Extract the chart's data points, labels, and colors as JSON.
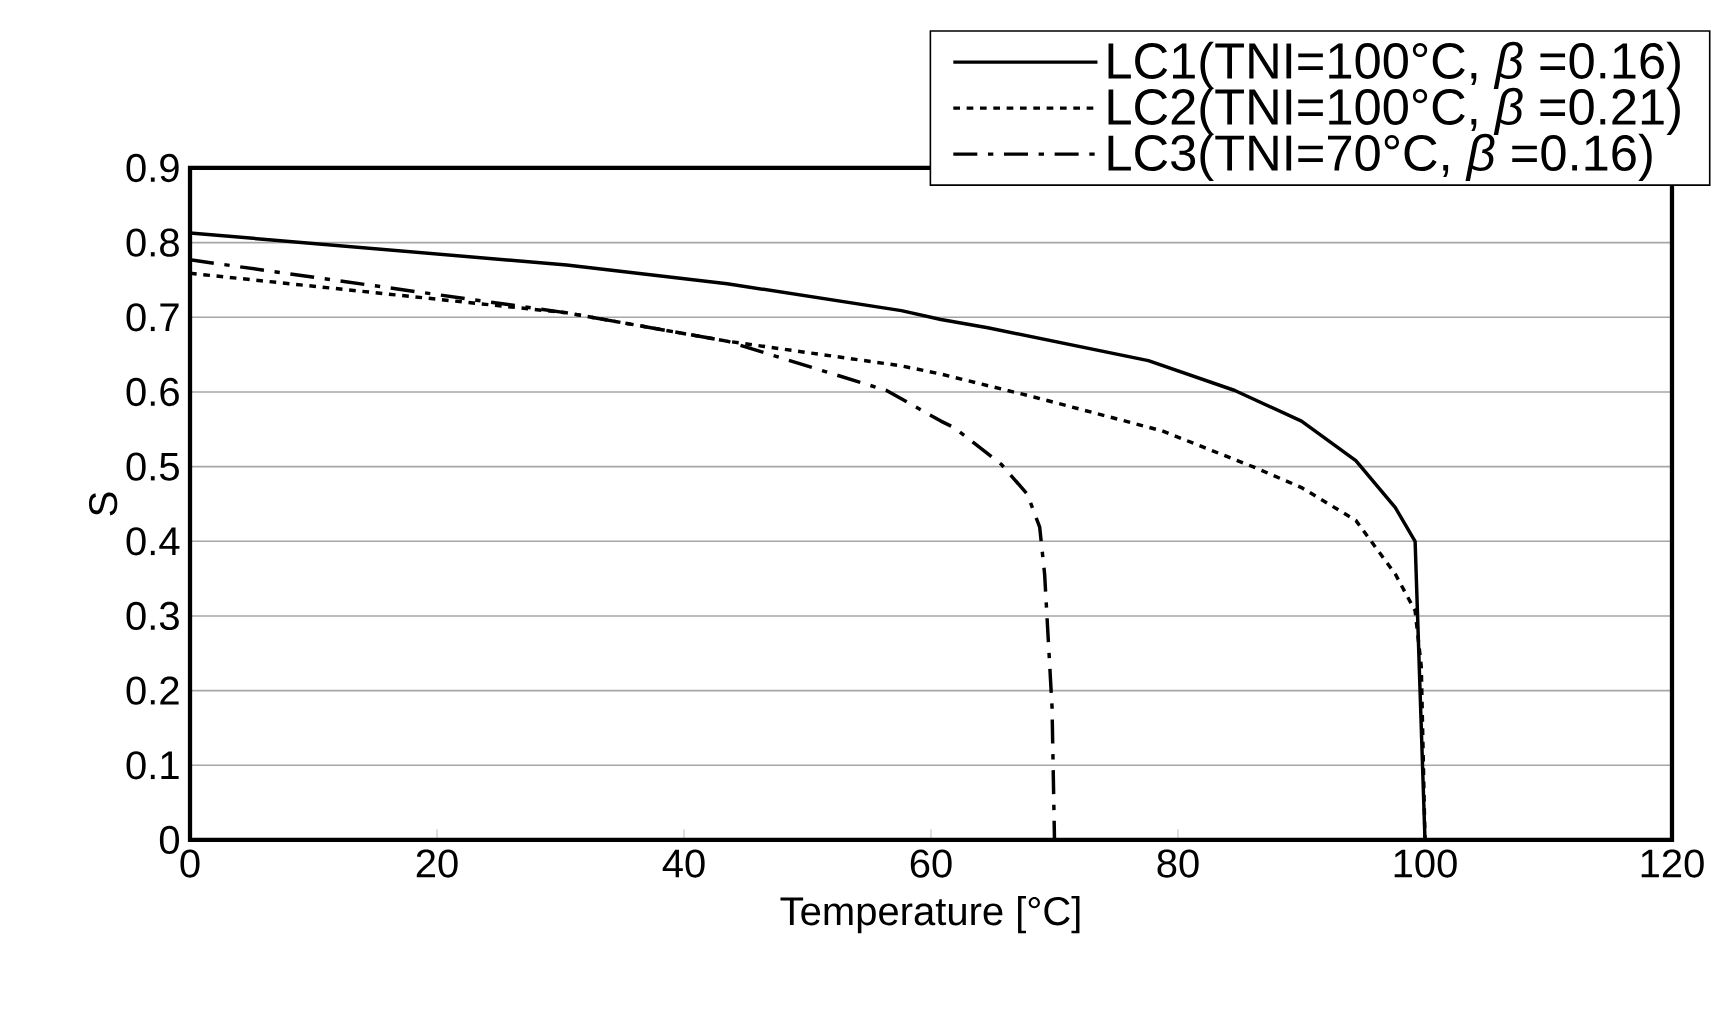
{
  "chart_data": {
    "type": "line",
    "xlabel": "Temperature [°C]",
    "ylabel": "S",
    "xlim": [
      0,
      120
    ],
    "ylim": [
      0,
      0.9
    ],
    "xticks": [
      0,
      20,
      40,
      60,
      80,
      100,
      120
    ],
    "yticks": [
      0,
      0.1,
      0.2,
      0.3,
      0.4,
      0.5,
      0.6,
      0.7,
      0.8,
      0.9
    ],
    "grid": "y",
    "legend": "top right",
    "marker": "none",
    "series": [
      {
        "name": "LC1(TNI=100°C, *β* =0.16)",
        "color": "#000000",
        "line_style": "solid",
        "x": [
          0,
          30.5,
          43.5,
          57.6,
          60.8,
          64.6,
          77.6,
          84.6,
          90,
          94.4,
          97.6,
          99.2,
          99.6,
          100
        ],
        "values": [
          0.813,
          0.77,
          0.745,
          0.709,
          0.697,
          0.686,
          0.642,
          0.602,
          0.561,
          0.508,
          0.445,
          0.4,
          0.2,
          0
        ]
      },
      {
        "name": "LC2(TNI=100°C, *β* =0.21)",
        "color": "#000000",
        "line_style": "dotted",
        "x": [
          0,
          30.5,
          43.5,
          57.6,
          60.8,
          68.4,
          78.7,
          86.2,
          90,
          94.4,
          97.6,
          99.2,
          99.7,
          100
        ],
        "values": [
          0.759,
          0.706,
          0.668,
          0.635,
          0.624,
          0.593,
          0.548,
          0.499,
          0.472,
          0.428,
          0.356,
          0.307,
          0.232,
          0
        ]
      },
      {
        "name": "LC3(TNI=70°C, *β* =0.16)",
        "color": "#000000",
        "line_style": "dashdot",
        "x": [
          0,
          30.5,
          43.5,
          56.4,
          60.8,
          61.9,
          65.7,
          67.8,
          68.8,
          69.2,
          69.8,
          70
        ],
        "values": [
          0.777,
          0.706,
          0.668,
          0.602,
          0.561,
          0.552,
          0.503,
          0.463,
          0.419,
          0.356,
          0.178,
          0
        ]
      }
    ]
  }
}
